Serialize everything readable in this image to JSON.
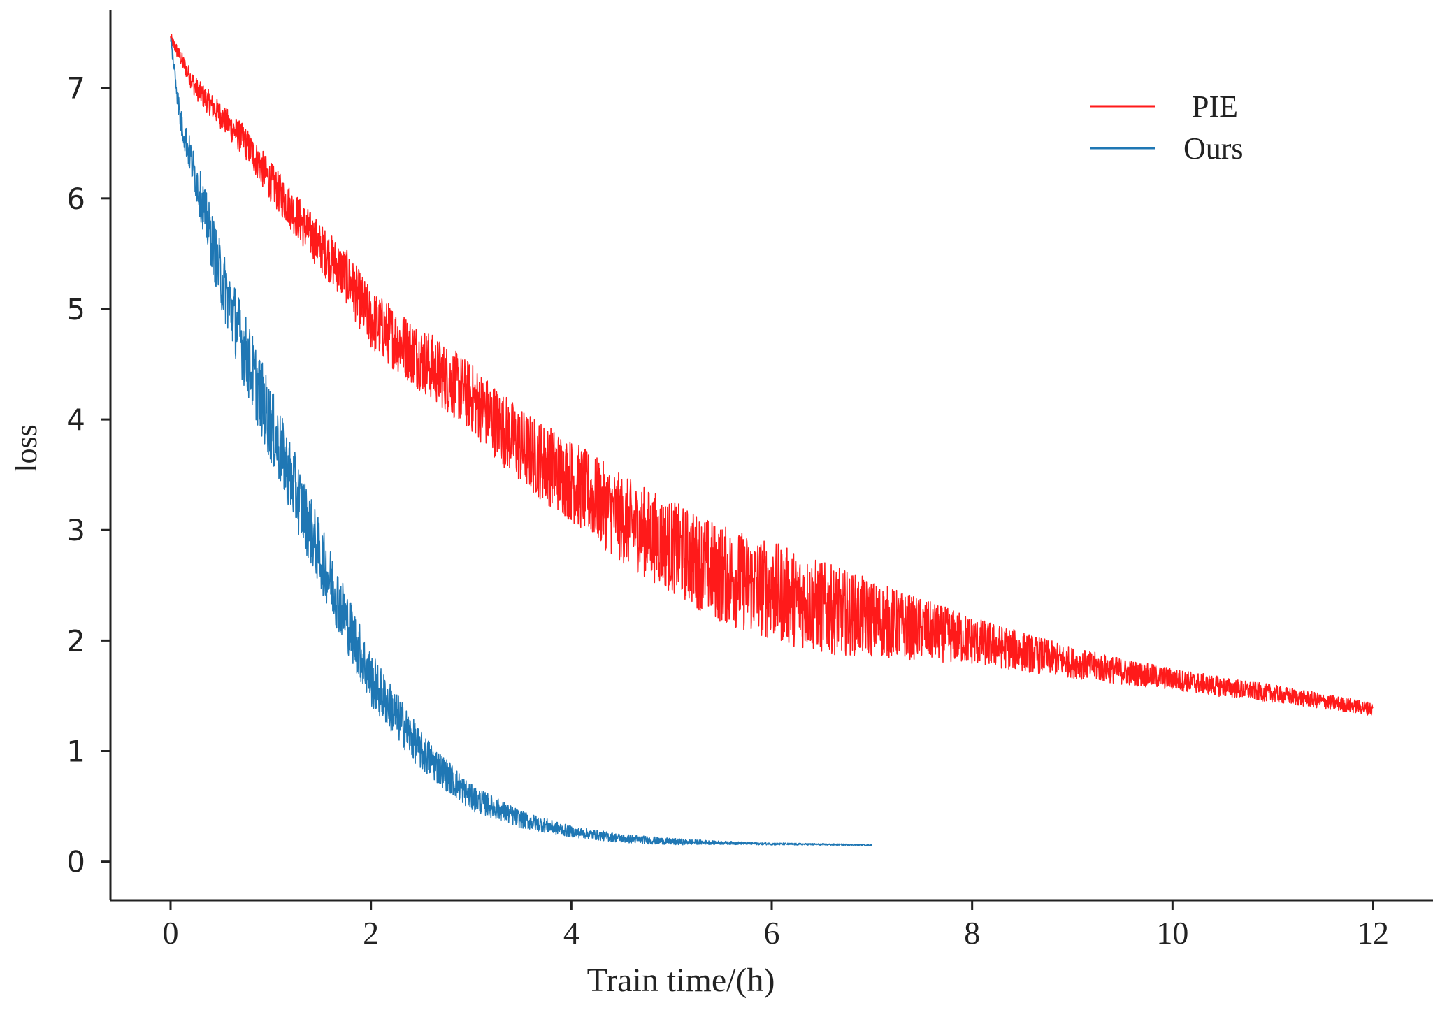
{
  "chart_data": {
    "type": "line",
    "title": "",
    "xlabel": "Train time/(h)",
    "ylabel": "loss",
    "xlim": [
      -0.6,
      12.6
    ],
    "ylim": [
      -0.35,
      7.7
    ],
    "xticks": [
      0,
      2,
      4,
      6,
      8,
      10,
      12
    ],
    "yticks": [
      0,
      1,
      2,
      3,
      4,
      5,
      6,
      7
    ],
    "grid": false,
    "legend_position": "top-right",
    "series": [
      {
        "name": "PIE",
        "color": "#ff1a1a",
        "x": [
          0,
          0.25,
          0.5,
          0.75,
          1.0,
          1.25,
          1.5,
          1.75,
          2.0,
          2.5,
          3.0,
          3.5,
          4.0,
          4.5,
          5.0,
          5.5,
          6.0,
          6.5,
          7.0,
          7.5,
          8.0,
          8.5,
          9.0,
          9.5,
          10.0,
          10.5,
          11.0,
          11.5,
          12.0
        ],
        "values": [
          7.45,
          7.0,
          6.75,
          6.5,
          6.15,
          5.85,
          5.55,
          5.3,
          4.9,
          4.55,
          4.2,
          3.75,
          3.45,
          3.1,
          2.85,
          2.6,
          2.45,
          2.3,
          2.2,
          2.1,
          2.0,
          1.9,
          1.8,
          1.72,
          1.65,
          1.58,
          1.52,
          1.45,
          1.38
        ],
        "noise_amplitude": [
          0.05,
          0.1,
          0.12,
          0.15,
          0.18,
          0.2,
          0.22,
          0.25,
          0.28,
          0.3,
          0.32,
          0.35,
          0.38,
          0.4,
          0.42,
          0.45,
          0.45,
          0.42,
          0.35,
          0.28,
          0.22,
          0.18,
          0.14,
          0.12,
          0.1,
          0.09,
          0.08,
          0.07,
          0.06
        ]
      },
      {
        "name": "Ours",
        "color": "#1f77b4",
        "x": [
          0,
          0.1,
          0.25,
          0.5,
          0.75,
          1.0,
          1.25,
          1.5,
          1.75,
          2.0,
          2.5,
          3.0,
          3.5,
          4.0,
          4.5,
          5.0,
          5.5,
          6.0,
          6.5,
          7.0
        ],
        "values": [
          7.45,
          6.7,
          6.2,
          5.3,
          4.6,
          3.95,
          3.35,
          2.75,
          2.2,
          1.65,
          1.0,
          0.58,
          0.38,
          0.27,
          0.21,
          0.18,
          0.17,
          0.16,
          0.155,
          0.15
        ],
        "noise_amplitude": [
          0.05,
          0.12,
          0.2,
          0.3,
          0.35,
          0.35,
          0.33,
          0.3,
          0.28,
          0.25,
          0.18,
          0.12,
          0.08,
          0.05,
          0.04,
          0.03,
          0.015,
          0.01,
          0.008,
          0.005
        ]
      }
    ]
  }
}
